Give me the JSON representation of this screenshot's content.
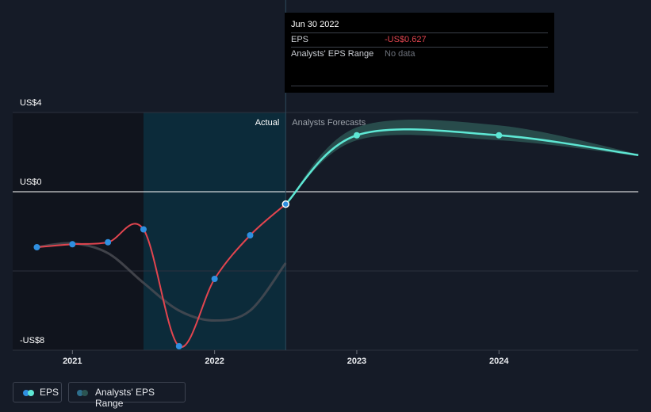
{
  "colors": {
    "background": "#151b27",
    "past_shade": "#10141d",
    "actual_shade": "#0c2b3a",
    "eps_past": "#e2454f",
    "eps_forecast": "#5ee7d4",
    "eps_marker": "#2f8fe0",
    "range_band": "#2b5452",
    "range_past": "#4c4e55",
    "gridline": "#2b313d",
    "zero_line": "#ffffff"
  },
  "tooltip": {
    "date": "Jun 30 2022",
    "eps_label": "EPS",
    "eps_value": "-US$0.627",
    "eps_value_color": "#e2454f",
    "range_label": "Analysts' EPS Range",
    "range_value": "No data"
  },
  "sections": {
    "actual_label": "Actual",
    "forecast_label": "Analysts Forecasts"
  },
  "legend": [
    {
      "label": "EPS",
      "icon": "eps-dots-icon"
    },
    {
      "label": "Analysts' EPS Range",
      "icon": "range-dots-icon"
    }
  ],
  "chart_data": {
    "type": "line",
    "title": "",
    "xlabel": "",
    "ylabel": "",
    "x_ticks": [
      "2021",
      "2022",
      "2023",
      "2024"
    ],
    "y_ticks": [
      {
        "value": 4,
        "label": "US$4"
      },
      {
        "value": 0,
        "label": "US$0"
      },
      {
        "value": -8,
        "label": "-US$8"
      }
    ],
    "xlim": [
      2020.58,
      2024.98
    ],
    "ylim": [
      -8,
      4
    ],
    "grid": true,
    "legend_position": "bottom-left",
    "series": [
      {
        "name": "EPS",
        "type": "actual",
        "x": [
          2020.75,
          2021.0,
          2021.25,
          2021.5,
          2021.75,
          2022.0,
          2022.25,
          2022.5
        ],
        "y": [
          -2.8,
          -2.65,
          -2.55,
          -1.9,
          -7.8,
          -4.4,
          -2.2,
          -0.627
        ]
      },
      {
        "name": "EPS",
        "type": "forecast",
        "x": [
          2022.5,
          2023.0,
          2024.0,
          2024.98
        ],
        "y": [
          -0.627,
          2.85,
          2.85,
          1.85
        ]
      }
    ],
    "analyst_range": {
      "x": [
        2022.5,
        2023.0,
        2024.0,
        2024.98
      ],
      "low": [
        -0.627,
        2.6,
        2.6,
        1.8
      ],
      "high": [
        -0.627,
        3.25,
        3.35,
        1.9
      ]
    },
    "past_range_line": {
      "x": [
        2020.75,
        2021.0,
        2021.25,
        2021.5,
        2021.75,
        2022.0,
        2022.25,
        2022.5
      ],
      "y": [
        -2.8,
        -2.6,
        -3.1,
        -4.6,
        -6.0,
        -6.5,
        -6.0,
        -3.6
      ]
    },
    "actual_period": [
      2021.5,
      2022.5
    ],
    "highlight_x": 2022.5
  }
}
